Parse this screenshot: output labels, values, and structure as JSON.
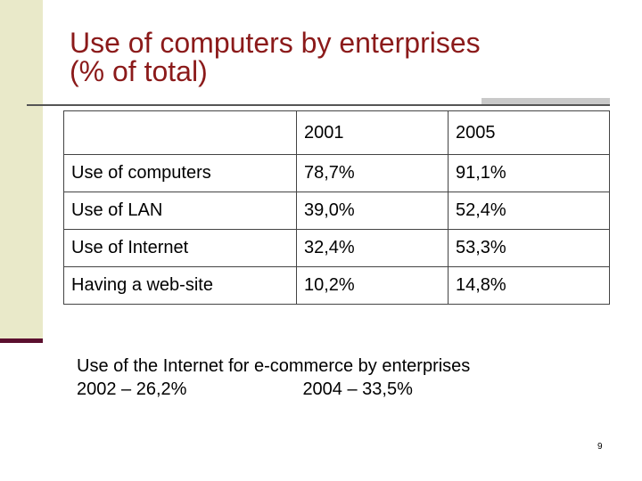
{
  "slide": {
    "title_line1": "Use of computers by enterprises",
    "title_line2": "(% of total)",
    "colors": {
      "title": "#8b1a1a",
      "sidebar": "#e9e9c9",
      "sidebar_line": "#5b0f2e"
    },
    "table": {
      "header": [
        "",
        "2001",
        "2005"
      ],
      "rows": [
        [
          "Use of computers",
          "78,7%",
          "91,1%"
        ],
        [
          "Use of LAN",
          "39,0%",
          "52,4%"
        ],
        [
          "Use of Internet",
          "32,4%",
          "53,3%"
        ],
        [
          "Having a web-site",
          "10,2%",
          "14,8%"
        ]
      ]
    },
    "note": {
      "line1": "Use of the Internet for e-commerce by enterprises",
      "line2a": "2002 – 26,2%",
      "line2b": "2004 – 33,5%"
    },
    "page_number": "9"
  }
}
